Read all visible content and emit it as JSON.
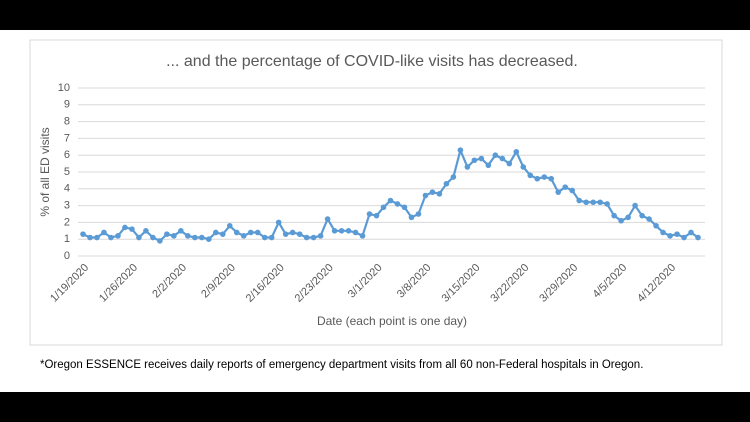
{
  "chart_data": {
    "type": "line",
    "title": "... and the percentage of COVID-like visits has decreased.",
    "xlabel": "Date (each point is one day)",
    "ylabel": "% of all ED visits",
    "categories": [
      "1/19/2020",
      null,
      null,
      null,
      null,
      null,
      null,
      "1/26/2020",
      null,
      null,
      null,
      null,
      null,
      null,
      "2/2/2020",
      null,
      null,
      null,
      null,
      null,
      null,
      "2/9/2020",
      null,
      null,
      null,
      null,
      null,
      null,
      "2/16/2020",
      null,
      null,
      null,
      null,
      null,
      null,
      "2/23/2020",
      null,
      null,
      null,
      null,
      null,
      null,
      "3/1/2020",
      null,
      null,
      null,
      null,
      null,
      null,
      "3/8/2020",
      null,
      null,
      null,
      null,
      null,
      null,
      "3/15/2020",
      null,
      null,
      null,
      null,
      null,
      null,
      "3/22/2020",
      null,
      null,
      null,
      null,
      null,
      null,
      "3/29/2020",
      null,
      null,
      null,
      null,
      null,
      null,
      "4/5/2020",
      null,
      null,
      null,
      null,
      null,
      null,
      "4/12/2020",
      null,
      null,
      null,
      null
    ],
    "values": [
      1.3,
      1.1,
      1.1,
      1.4,
      1.1,
      1.2,
      1.7,
      1.6,
      1.1,
      1.5,
      1.1,
      0.9,
      1.3,
      1.2,
      1.5,
      1.2,
      1.1,
      1.1,
      1.0,
      1.4,
      1.3,
      1.8,
      1.4,
      1.2,
      1.4,
      1.4,
      1.1,
      1.1,
      2.0,
      1.3,
      1.4,
      1.3,
      1.1,
      1.1,
      1.2,
      2.2,
      1.5,
      1.5,
      1.5,
      1.4,
      1.2,
      2.5,
      2.4,
      2.9,
      3.3,
      3.1,
      2.9,
      2.3,
      2.5,
      3.6,
      3.8,
      3.7,
      4.3,
      4.7,
      6.3,
      5.3,
      5.7,
      5.8,
      5.4,
      6.0,
      5.8,
      5.5,
      6.2,
      5.3,
      4.8,
      4.6,
      4.7,
      4.6,
      3.8,
      4.1,
      3.9,
      3.3,
      3.2,
      3.2,
      3.2,
      3.1,
      2.4,
      2.1,
      2.3,
      3.0,
      2.4,
      2.2,
      1.8,
      1.4,
      1.2,
      1.3,
      1.1,
      1.4,
      1.1
    ],
    "color": "#5b9bd5",
    "ylim": [
      0,
      10
    ],
    "yticks": [
      0,
      1,
      2,
      3,
      4,
      5,
      6,
      7,
      8,
      9,
      10
    ],
    "grid": true
  },
  "footnote": "*Oregon ESSENCE receives daily reports of emergency department visits from all 60 non-Federal hospitals in Oregon."
}
